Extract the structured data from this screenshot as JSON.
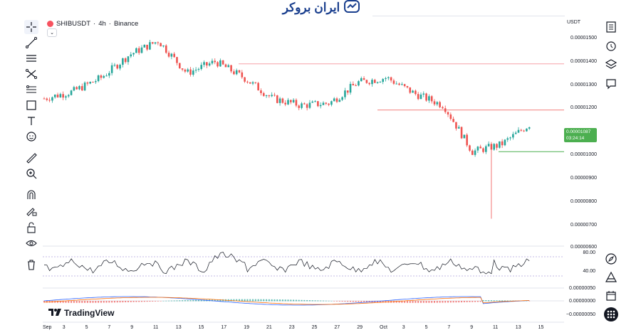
{
  "legend": {
    "symbol": "SHIBUSDT",
    "interval": "4h",
    "exchange": "Binance",
    "separator": "·"
  },
  "collapse_glyph": "⌄",
  "watermark": {
    "brand": "ایران بروکر",
    "accent": "#1a3f8e"
  },
  "currency": "USDT",
  "price_labels": [
    "0.00001500",
    "0.00001400",
    "0.00001300",
    "0.00001200",
    "0.00001100",
    "0.00001000",
    "0.00000900",
    "0.00000800",
    "0.00000700",
    "0.00000600"
  ],
  "price_badge": {
    "price": "0.00001087",
    "countdown": "03:24:14",
    "color": "#4caf50"
  },
  "rsi_labels": [
    "80.00",
    "40.00"
  ],
  "macd_labels": [
    "0.00000050",
    "0.00000000",
    "−0.00000050"
  ],
  "time_labels": [
    "Sep",
    "3",
    "5",
    "7",
    "9",
    "11",
    "13",
    "15",
    "17",
    "19",
    "21",
    "23",
    "25",
    "27",
    "29",
    "Oct",
    "3",
    "5",
    "7",
    "9",
    "11",
    "13",
    "15"
  ],
  "brand_footer": "TradingView",
  "colors": {
    "up": "#26a69a",
    "down": "#ef5350",
    "resistance": "#f7a1a8",
    "support": "#4caf50"
  },
  "left_tools": [
    "crosshair-icon",
    "trend-line-icon",
    "horizontal-lines-icon",
    "pattern-icon",
    "fib-icon",
    "rectangle-icon",
    "text-icon",
    "emoji-icon",
    "ruler-icon",
    "zoom-icon",
    "magnet-icon",
    "lock-draw-icon",
    "lock-icon",
    "eye-icon",
    "trash-icon"
  ],
  "right_tools": [
    "watchlist-icon",
    "alarm-icon",
    "layers-icon",
    "chat-icon",
    "compass-icon",
    "triangle-icon",
    "calendar-icon",
    "grid-icon"
  ],
  "chart_data": {
    "type": "candlestick",
    "title": "SHIBUSDT · 4h · Binance",
    "ylim": [
      5.8e-06,
      1.54e-05
    ],
    "description_points": [
      {
        "x": "Sep 1",
        "y": 1.2e-05
      },
      {
        "x": "Sep 5",
        "y": 1.23e-05
      },
      {
        "x": "Sep 9",
        "y": 1.29e-05
      },
      {
        "x": "Sep 12",
        "y": 1.39e-05
      },
      {
        "x": "Sep 13",
        "y": 1.45e-05
      },
      {
        "x": "Sep 15",
        "y": 1.31e-05
      },
      {
        "x": "Sep 19",
        "y": 1.36e-05
      },
      {
        "x": "Sep 21",
        "y": 1.29e-05
      },
      {
        "x": "Sep 23",
        "y": 1.2e-05
      },
      {
        "x": "Sep 25",
        "y": 1.17e-05
      },
      {
        "x": "Sep 29",
        "y": 1.18e-05
      },
      {
        "x": "Oct 2",
        "y": 1.27e-05
      },
      {
        "x": "Oct 7",
        "y": 1.29e-05
      },
      {
        "x": "Oct 9",
        "y": 1.22e-05
      },
      {
        "x": "Oct 10",
        "y": 1.17e-05
      },
      {
        "x": "Oct 11",
        "y": 9.7e-06
      },
      {
        "x": "Oct 12",
        "y": 1e-05
      },
      {
        "x": "Oct 13",
        "y": 1.087e-05
      }
    ],
    "horizontal_levels": [
      1.35e-05,
      1.15e-05,
      9.7e-06
    ],
    "spike_low": 6.8e-06
  }
}
